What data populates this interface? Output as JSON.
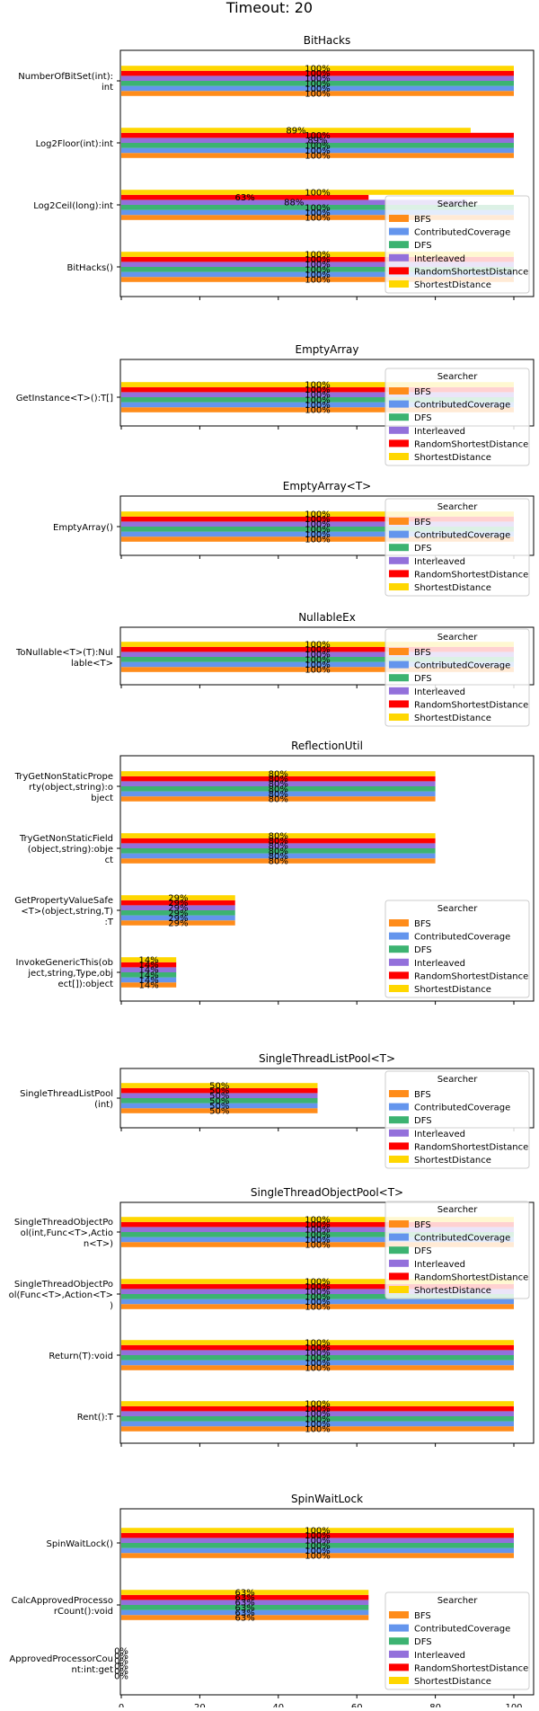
{
  "page_title": "Timeout: 20",
  "legend_title": "Searcher",
  "searchers": [
    "BFS",
    "ContributedCoverage",
    "DFS",
    "Interleaved",
    "RandomShortestDistance",
    "ShortestDistance"
  ],
  "colors": {
    "BFS": "#ff8c1a",
    "ContributedCoverage": "#6495ed",
    "DFS": "#3cb371",
    "Interleaved": "#9370db",
    "RandomShortestDistance": "#ff0000",
    "ShortestDistance": "#ffd700"
  },
  "x_ticks": [
    "0",
    "20",
    "40",
    "60",
    "80",
    "100"
  ],
  "chart_data": [
    {
      "type": "bar",
      "orientation": "horizontal",
      "title": "BitHacks",
      "xlim": [
        0,
        100
      ],
      "categories": [
        {
          "lines": [
            "NumberOfBitSet(int):",
            "int"
          ]
        },
        {
          "lines": [
            "Log2Floor(int):int"
          ]
        },
        {
          "lines": [
            "Log2Ceil(long):int"
          ]
        },
        {
          "lines": [
            "BitHacks()"
          ]
        }
      ],
      "series": [
        {
          "name": "BFS",
          "values": [
            100,
            100,
            100,
            100
          ]
        },
        {
          "name": "ContributedCoverage",
          "values": [
            100,
            100,
            100,
            100
          ]
        },
        {
          "name": "DFS",
          "values": [
            100,
            100,
            100,
            100
          ]
        },
        {
          "name": "Interleaved",
          "values": [
            100,
            100,
            88,
            100
          ]
        },
        {
          "name": "RandomShortestDistance",
          "values": [
            100,
            100,
            63,
            100
          ]
        },
        {
          "name": "ShortestDistance",
          "values": [
            100,
            89,
            100,
            100
          ]
        }
      ],
      "labels": [
        [
          "100%",
          "100%",
          "100%",
          "100%",
          "100%",
          "100%"
        ],
        [
          "100%",
          "100%",
          "100%",
          "89%",
          "100%",
          "89%"
        ],
        [
          "100%",
          "100%",
          "100%",
          "88%",
          "63%",
          "100%"
        ],
        [
          "100%",
          "100%",
          "100%",
          "100%",
          "100%",
          "100%"
        ]
      ],
      "show_xticklabels": false
    },
    {
      "type": "bar",
      "orientation": "horizontal",
      "title": "EmptyArray",
      "xlim": [
        0,
        100
      ],
      "categories": [
        {
          "lines": [
            "GetInstance<T>():T[]"
          ]
        }
      ],
      "series": [
        {
          "name": "BFS",
          "values": [
            100
          ]
        },
        {
          "name": "ContributedCoverage",
          "values": [
            100
          ]
        },
        {
          "name": "DFS",
          "values": [
            100
          ]
        },
        {
          "name": "Interleaved",
          "values": [
            100
          ]
        },
        {
          "name": "RandomShortestDistance",
          "values": [
            100
          ]
        },
        {
          "name": "ShortestDistance",
          "values": [
            100
          ]
        }
      ],
      "labels": [
        [
          "100%",
          "100%",
          "100%",
          "100%",
          "100%",
          "100%"
        ]
      ],
      "show_xticklabels": false
    },
    {
      "type": "bar",
      "orientation": "horizontal",
      "title": "EmptyArray<T>",
      "xlim": [
        0,
        100
      ],
      "categories": [
        {
          "lines": [
            "EmptyArray()"
          ]
        }
      ],
      "series": [
        {
          "name": "BFS",
          "values": [
            100
          ]
        },
        {
          "name": "ContributedCoverage",
          "values": [
            100
          ]
        },
        {
          "name": "DFS",
          "values": [
            100
          ]
        },
        {
          "name": "Interleaved",
          "values": [
            100
          ]
        },
        {
          "name": "RandomShortestDistance",
          "values": [
            100
          ]
        },
        {
          "name": "ShortestDistance",
          "values": [
            100
          ]
        }
      ],
      "labels": [
        [
          "100%",
          "100%",
          "100%",
          "100%",
          "100%",
          "100%"
        ]
      ],
      "show_xticklabels": false
    },
    {
      "type": "bar",
      "orientation": "horizontal",
      "title": "NullableEx",
      "xlim": [
        0,
        100
      ],
      "categories": [
        {
          "lines": [
            "ToNullable<T>(T):Nul",
            "lable<T>"
          ]
        }
      ],
      "series": [
        {
          "name": "BFS",
          "values": [
            100
          ]
        },
        {
          "name": "ContributedCoverage",
          "values": [
            100
          ]
        },
        {
          "name": "DFS",
          "values": [
            100
          ]
        },
        {
          "name": "Interleaved",
          "values": [
            100
          ]
        },
        {
          "name": "RandomShortestDistance",
          "values": [
            100
          ]
        },
        {
          "name": "ShortestDistance",
          "values": [
            100
          ]
        }
      ],
      "labels": [
        [
          "100%",
          "100%",
          "100%",
          "100%",
          "100%",
          "100%"
        ]
      ],
      "show_xticklabels": false
    },
    {
      "type": "bar",
      "orientation": "horizontal",
      "title": "ReflectionUtil",
      "xlim": [
        0,
        100
      ],
      "categories": [
        {
          "lines": [
            "TryGetNonStaticPrope",
            "rty(object,string):o",
            "bject"
          ]
        },
        {
          "lines": [
            "TryGetNonStaticField",
            "(object,string):obje",
            "ct"
          ]
        },
        {
          "lines": [
            "GetPropertyValueSafe",
            "<T>(object,string,T)",
            ":T"
          ]
        },
        {
          "lines": [
            "InvokeGenericThis(ob",
            "ject,string,Type,obj",
            "ect[]):object"
          ]
        }
      ],
      "series": [
        {
          "name": "BFS",
          "values": [
            80,
            80,
            29,
            14
          ]
        },
        {
          "name": "ContributedCoverage",
          "values": [
            80,
            80,
            29,
            14
          ]
        },
        {
          "name": "DFS",
          "values": [
            80,
            80,
            29,
            14
          ]
        },
        {
          "name": "Interleaved",
          "values": [
            80,
            80,
            29,
            14
          ]
        },
        {
          "name": "RandomShortestDistance",
          "values": [
            80,
            80,
            29,
            14
          ]
        },
        {
          "name": "ShortestDistance",
          "values": [
            80,
            80,
            29,
            14
          ]
        }
      ],
      "labels": [
        [
          "80%",
          "80%",
          "80%",
          "80%",
          "80%",
          "80%"
        ],
        [
          "80%",
          "80%",
          "80%",
          "80%",
          "80%",
          "80%"
        ],
        [
          "29%",
          "29%",
          "29%",
          "29%",
          "29%",
          "29%"
        ],
        [
          "14%",
          "14%",
          "14%",
          "14%",
          "14%",
          "14%"
        ]
      ],
      "show_xticklabels": false
    },
    {
      "type": "bar",
      "orientation": "horizontal",
      "title": "SingleThreadListPool<T>",
      "xlim": [
        0,
        100
      ],
      "categories": [
        {
          "lines": [
            "SingleThreadListPool",
            "(int)"
          ]
        }
      ],
      "series": [
        {
          "name": "BFS",
          "values": [
            50
          ]
        },
        {
          "name": "ContributedCoverage",
          "values": [
            50
          ]
        },
        {
          "name": "DFS",
          "values": [
            50
          ]
        },
        {
          "name": "Interleaved",
          "values": [
            50
          ]
        },
        {
          "name": "RandomShortestDistance",
          "values": [
            50
          ]
        },
        {
          "name": "ShortestDistance",
          "values": [
            50
          ]
        }
      ],
      "labels": [
        [
          "50%",
          "50%",
          "50%",
          "50%",
          "50%",
          "50%"
        ]
      ],
      "show_xticklabels": false
    },
    {
      "type": "bar",
      "orientation": "horizontal",
      "title": "SingleThreadObjectPool<T>",
      "xlim": [
        0,
        100
      ],
      "categories": [
        {
          "lines": [
            "SingleThreadObjectPo",
            "ol(int,Func<T>,Actio",
            "n<T>)"
          ]
        },
        {
          "lines": [
            "SingleThreadObjectPo",
            "ol(Func<T>,Action<T>",
            ")"
          ]
        },
        {
          "lines": [
            "Return(T):void"
          ]
        },
        {
          "lines": [
            "Rent():T"
          ]
        }
      ],
      "series": [
        {
          "name": "BFS",
          "values": [
            100,
            100,
            100,
            100
          ]
        },
        {
          "name": "ContributedCoverage",
          "values": [
            100,
            100,
            100,
            100
          ]
        },
        {
          "name": "DFS",
          "values": [
            100,
            100,
            100,
            100
          ]
        },
        {
          "name": "Interleaved",
          "values": [
            100,
            100,
            100,
            100
          ]
        },
        {
          "name": "RandomShortestDistance",
          "values": [
            100,
            100,
            100,
            100
          ]
        },
        {
          "name": "ShortestDistance",
          "values": [
            100,
            100,
            100,
            100
          ]
        }
      ],
      "labels": [
        [
          "100%",
          "100%",
          "100%",
          "100%",
          "100%",
          "100%"
        ],
        [
          "100%",
          "100%",
          "100%",
          "100%",
          "100%",
          "100%"
        ],
        [
          "100%",
          "100%",
          "100%",
          "100%",
          "100%",
          "100%"
        ],
        [
          "100%",
          "100%",
          "100%",
          "100%",
          "100%",
          "100%"
        ]
      ],
      "show_xticklabels": false
    },
    {
      "type": "bar",
      "orientation": "horizontal",
      "title": "SpinWaitLock",
      "xlim": [
        0,
        100
      ],
      "categories": [
        {
          "lines": [
            "SpinWaitLock()"
          ]
        },
        {
          "lines": [
            "CalcApprovedProcesso",
            "rCount():void"
          ]
        },
        {
          "lines": [
            "ApprovedProcessorCou",
            "nt:int:get"
          ]
        }
      ],
      "series": [
        {
          "name": "BFS",
          "values": [
            100,
            63,
            0
          ]
        },
        {
          "name": "ContributedCoverage",
          "values": [
            100,
            63,
            0
          ]
        },
        {
          "name": "DFS",
          "values": [
            100,
            63,
            0
          ]
        },
        {
          "name": "Interleaved",
          "values": [
            100,
            63,
            0
          ]
        },
        {
          "name": "RandomShortestDistance",
          "values": [
            100,
            63,
            0
          ]
        },
        {
          "name": "ShortestDistance",
          "values": [
            100,
            63,
            0
          ]
        }
      ],
      "labels": [
        [
          "100%",
          "100%",
          "100%",
          "100%",
          "100%",
          "100%"
        ],
        [
          "63%",
          "63%",
          "63%",
          "63%",
          "63%",
          "63%"
        ],
        [
          "0%",
          "0%",
          "0%",
          "0%",
          "0%",
          "0%"
        ]
      ],
      "show_xticklabels": true
    }
  ]
}
